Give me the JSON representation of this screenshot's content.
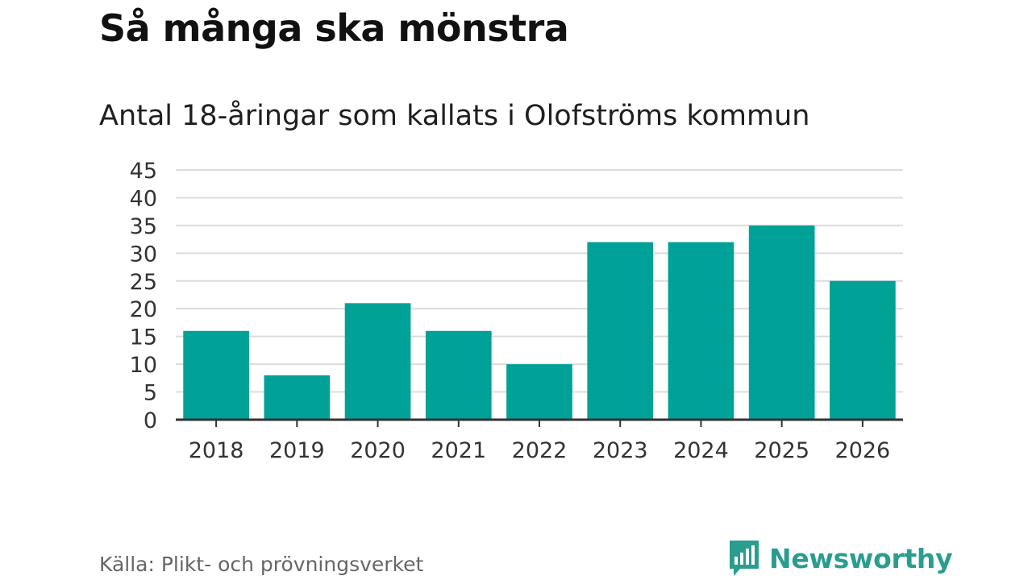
{
  "header": {
    "title": "Så många ska mönstra",
    "subtitle": "Antal 18-åringar som kallats i Olofströms kommun"
  },
  "footer": {
    "source": "Källa: Plikt- och prövningsverket",
    "brand": "Newsworthy"
  },
  "colors": {
    "bar": "#00a196",
    "grid": "#dcdcdc",
    "axis": "#333333",
    "brand": "#2a9d8f"
  },
  "chart_data": {
    "type": "bar",
    "title": "Så många ska mönstra",
    "subtitle": "Antal 18-åringar som kallats i Olofströms kommun",
    "categories": [
      "2018",
      "2019",
      "2020",
      "2021",
      "2022",
      "2023",
      "2024",
      "2025",
      "2026"
    ],
    "values": [
      16,
      8,
      21,
      16,
      10,
      32,
      32,
      35,
      25
    ],
    "ylim": [
      0,
      45
    ],
    "yticks": [
      0,
      5,
      10,
      15,
      20,
      25,
      30,
      35,
      40,
      45
    ],
    "xlabel": "",
    "ylabel": "",
    "grid": true
  }
}
